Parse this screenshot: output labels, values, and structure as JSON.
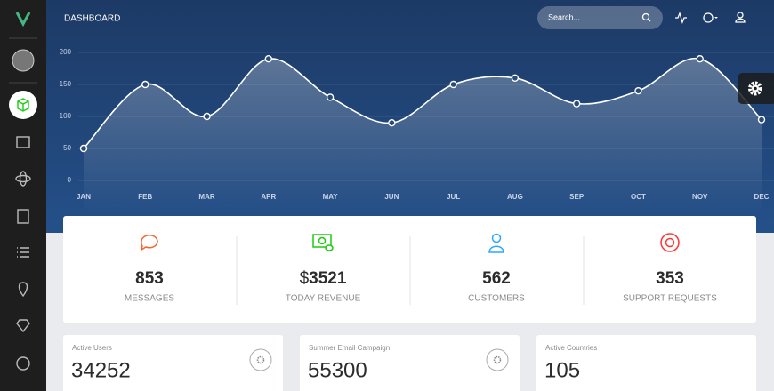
{
  "header": {
    "title": "DASHBOARD",
    "search_placeholder": "Search..."
  },
  "chart_data": {
    "type": "line",
    "categories": [
      "JAN",
      "FEB",
      "MAR",
      "APR",
      "MAY",
      "JUN",
      "JUL",
      "AUG",
      "SEP",
      "OCT",
      "NOV",
      "DEC"
    ],
    "values": [
      50,
      150,
      100,
      190,
      130,
      90,
      150,
      160,
      120,
      140,
      190,
      95
    ],
    "color": "#ffffff",
    "ylim": [
      0,
      200
    ],
    "yticks": [
      0,
      50,
      100,
      150,
      200
    ],
    "grid": true
  },
  "stats": [
    {
      "value": 853,
      "label": "MESSAGES"
    },
    {
      "prefix": "$",
      "value": 3521,
      "label": "TODAY REVENUE"
    },
    {
      "value": 562,
      "label": "CUSTOMERS"
    },
    {
      "value": 353,
      "label": "SUPPORT REQUESTS"
    }
  ],
  "cards": [
    {
      "title": "Active Users",
      "value": 34252
    },
    {
      "title": "Summer Email Campaign",
      "value": 55300
    },
    {
      "title": "Active Countries",
      "value": 105
    }
  ]
}
